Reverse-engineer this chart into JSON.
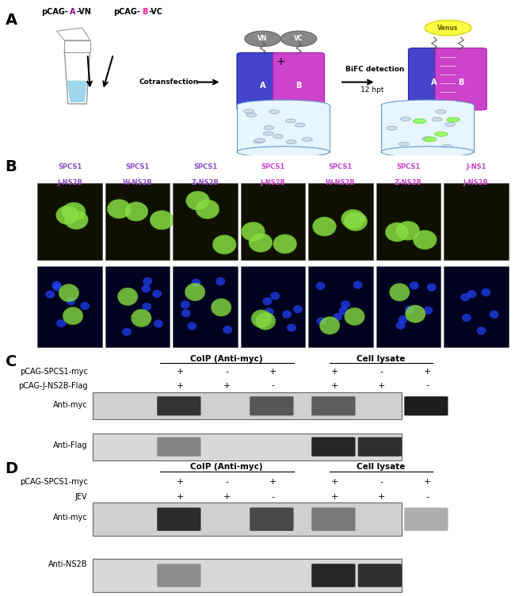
{
  "panel_A": {
    "label": "A",
    "text_pCAG": "pCAG-A-VN  pCAG-B-VC",
    "text_A_color": "#8B008B",
    "text_B_color": "#FF00FF",
    "cotransfection": "Cotransfection",
    "bifc": "BiFC detection",
    "hpt": "12 hpt",
    "venus": "Venus",
    "VN": "VN",
    "VC": "VC",
    "A_label": "A",
    "B_label": "B"
  },
  "panel_B": {
    "label": "B",
    "columns": [
      {
        "line1": "SPCS1",
        "line2": "J-NS2B",
        "c1": "#9966CC",
        "c2": "#9966CC"
      },
      {
        "line1": "SPCS1",
        "line2": "W-NS2B",
        "c1": "#9966CC",
        "c2": "#9966CC"
      },
      {
        "line1": "SPCS1",
        "line2": "Z-NS2B",
        "c1": "#9966CC",
        "c2": "#9966CC"
      },
      {
        "line1": "SPCS1",
        "line2": "J-NS2B",
        "c1": "#CC44CC",
        "c2": "#CC44CC"
      },
      {
        "line1": "SPCS1",
        "line2": "W-NS2B",
        "c1": "#CC44CC",
        "c2": "#CC44CC"
      },
      {
        "line1": "SPCS1",
        "line2": "Z-NS2B",
        "c1": "#CC44CC",
        "c2": "#CC44CC"
      },
      {
        "line1": "J-NS1",
        "line2": "J-NS2B",
        "c1": "#CC44CC",
        "c2": "#CC44CC"
      }
    ]
  },
  "panel_C": {
    "label": "C",
    "colip_label": "CoIP (Anti-myc)",
    "lysate_label": "Cell lysate",
    "row1_label": "pCAG-SPCS1-myc",
    "row2_label": "pCAG-J-NS2B-Flag",
    "row1_vals_coip": [
      "+",
      "-",
      "+"
    ],
    "row2_vals_coip": [
      "+",
      "+",
      "-"
    ],
    "row1_vals_lysate": [
      "+",
      "-",
      "+"
    ],
    "row2_vals_lysate": [
      "+",
      "+",
      "-"
    ],
    "band1_label": "Anti-myc",
    "band2_label": "Anti-Flag",
    "bg_color": "#e8e8e8"
  },
  "panel_D": {
    "label": "D",
    "colip_label": "CoIP (Anti-myc)",
    "lysate_label": "Cell lysate",
    "row1_label": "pCAG-SPCS1-myc",
    "row2_label": "JEV",
    "row1_vals_coip": [
      "+",
      "-",
      "+"
    ],
    "row2_vals_coip": [
      "+",
      "+",
      "-"
    ],
    "row1_vals_lysate": [
      "+",
      "-",
      "+"
    ],
    "row2_vals_lysate": [
      "+",
      "+",
      "-"
    ],
    "band1_label": "Anti-myc",
    "band2_label": "Anti-NS2B",
    "bg_color": "#e8e8e8"
  },
  "figure_bg": "#ffffff",
  "figure_width": 6.5,
  "figure_height": 7.52
}
